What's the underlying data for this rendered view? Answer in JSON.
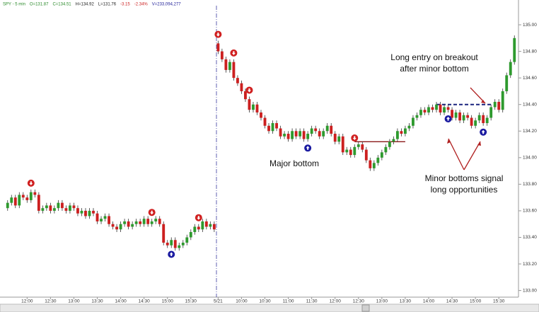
{
  "chart_data": {
    "type": "candlestick",
    "header": [
      {
        "text": "SPY - 5 min",
        "color": "#2a8a2a"
      },
      {
        "text": "O=131.87",
        "color": "#2a8a2a"
      },
      {
        "text": "C=134.51",
        "color": "#2a8a2a"
      },
      {
        "text": "H=134.92",
        "color": "#222222"
      },
      {
        "text": "L=131.76",
        "color": "#222222"
      },
      {
        "text": "-3.15",
        "color": "#cc2222"
      },
      {
        "text": "-2.34%",
        "color": "#cc2222"
      },
      {
        "text": "V=233,094,277",
        "color": "#222299"
      }
    ],
    "up_color": "#2e9a2e",
    "down_color": "#cc2020",
    "wick_color": "#333333",
    "categories": [
      null,
      null,
      null,
      null,
      null,
      "12:00",
      null,
      null,
      null,
      null,
      null,
      "12:30",
      null,
      null,
      null,
      null,
      null,
      "13:00",
      null,
      null,
      null,
      null,
      null,
      "13:30",
      null,
      null,
      null,
      null,
      null,
      "14:00",
      null,
      null,
      null,
      null,
      null,
      "14:30",
      null,
      null,
      null,
      null,
      null,
      "15:00",
      null,
      null,
      null,
      null,
      null,
      "15:30",
      null,
      null,
      null,
      null,
      null,
      null,
      "5/21",
      null,
      null,
      null,
      null,
      null,
      "10:00",
      null,
      null,
      null,
      null,
      null,
      "10:30",
      null,
      null,
      null,
      null,
      null,
      "11:00",
      null,
      null,
      null,
      null,
      null,
      "11:30",
      null,
      null,
      null,
      null,
      null,
      "12:00",
      null,
      null,
      null,
      null,
      null,
      "12:30",
      null,
      null,
      null,
      null,
      null,
      "13:00",
      null,
      null,
      null,
      null,
      null,
      "13:30",
      null,
      null,
      null,
      null,
      null,
      "14:00",
      null,
      null,
      null,
      null,
      null,
      "14:30",
      null,
      null,
      null,
      null,
      null,
      "15:00",
      null,
      null,
      null,
      null,
      null,
      "15:30",
      null,
      null,
      null,
      null
    ],
    "open": [
      133.62,
      133.66,
      133.7,
      133.64,
      133.72,
      133.7,
      133.68,
      133.74,
      133.72,
      133.6,
      133.62,
      133.64,
      133.6,
      133.62,
      133.66,
      133.62,
      133.6,
      133.64,
      133.62,
      133.58,
      133.6,
      133.56,
      133.6,
      133.58,
      133.52,
      133.54,
      133.56,
      133.5,
      133.48,
      133.46,
      133.5,
      133.52,
      133.48,
      133.5,
      133.52,
      133.5,
      133.54,
      133.5,
      133.52,
      133.54,
      133.5,
      133.36,
      133.34,
      133.38,
      133.32,
      133.34,
      133.36,
      133.4,
      133.44,
      133.48,
      133.46,
      133.52,
      133.48,
      133.5,
      134.86,
      134.8,
      134.74,
      134.66,
      134.72,
      134.6,
      134.56,
      134.5,
      134.44,
      134.36,
      134.4,
      134.34,
      134.3,
      134.24,
      134.2,
      134.26,
      134.22,
      134.16,
      134.18,
      134.14,
      134.2,
      134.16,
      134.2,
      134.14,
      134.18,
      134.22,
      134.2,
      134.16,
      134.2,
      134.24,
      134.18,
      134.12,
      134.16,
      134.04,
      134.06,
      134.02,
      134.08,
      134.1,
      134.06,
      133.98,
      133.92,
      133.96,
      134.0,
      134.04,
      134.08,
      134.12,
      134.14,
      134.2,
      134.18,
      134.22,
      134.24,
      134.3,
      134.32,
      134.36,
      134.34,
      134.38,
      134.36,
      134.4,
      134.34,
      134.38,
      134.36,
      134.3,
      134.34,
      134.28,
      134.32,
      134.3,
      134.24,
      134.28,
      134.32,
      134.26,
      134.3,
      134.38,
      134.42,
      134.36,
      134.5,
      134.62,
      134.72
    ],
    "high": [
      133.68,
      133.72,
      133.72,
      133.74,
      133.74,
      133.72,
      133.76,
      133.76,
      133.74,
      133.64,
      133.66,
      133.66,
      133.64,
      133.68,
      133.68,
      133.64,
      133.66,
      133.66,
      133.64,
      133.62,
      133.62,
      133.62,
      133.62,
      133.6,
      133.56,
      133.58,
      133.58,
      133.52,
      133.5,
      133.52,
      133.54,
      133.54,
      133.52,
      133.54,
      133.54,
      133.56,
      133.56,
      133.54,
      133.56,
      133.56,
      133.52,
      133.38,
      133.4,
      133.4,
      133.36,
      133.38,
      133.42,
      133.46,
      133.5,
      133.5,
      133.54,
      133.54,
      133.52,
      133.52,
      134.88,
      134.82,
      134.76,
      134.74,
      134.74,
      134.62,
      134.58,
      134.52,
      134.46,
      134.42,
      134.42,
      134.36,
      134.32,
      134.26,
      134.28,
      134.28,
      134.24,
      134.2,
      134.2,
      134.22,
      134.22,
      134.22,
      134.22,
      134.2,
      134.24,
      134.24,
      134.22,
      134.22,
      134.26,
      134.26,
      134.2,
      134.18,
      134.18,
      134.08,
      134.08,
      134.1,
      134.12,
      134.12,
      134.08,
      134.0,
      133.98,
      134.02,
      134.06,
      134.1,
      134.14,
      134.16,
      134.22,
      134.22,
      134.24,
      134.26,
      134.32,
      134.34,
      134.38,
      134.38,
      134.4,
      134.4,
      134.42,
      134.42,
      134.4,
      134.4,
      134.38,
      134.36,
      134.36,
      134.34,
      134.34,
      134.32,
      134.3,
      134.34,
      134.34,
      134.32,
      134.4,
      134.44,
      134.44,
      134.52,
      134.64,
      134.74,
      134.92
    ],
    "low": [
      133.6,
      133.64,
      133.62,
      133.62,
      133.68,
      133.66,
      133.66,
      133.7,
      133.58,
      133.58,
      133.6,
      133.58,
      133.58,
      133.6,
      133.6,
      133.58,
      133.58,
      133.6,
      133.56,
      133.56,
      133.54,
      133.54,
      133.56,
      133.5,
      133.5,
      133.52,
      133.48,
      133.46,
      133.44,
      133.44,
      133.48,
      133.46,
      133.46,
      133.48,
      133.48,
      133.48,
      133.48,
      133.48,
      133.5,
      133.48,
      133.34,
      133.32,
      133.32,
      133.3,
      133.3,
      133.32,
      133.34,
      133.38,
      133.42,
      133.44,
      133.44,
      133.46,
      133.46,
      133.44,
      134.78,
      134.72,
      134.64,
      134.64,
      134.58,
      134.54,
      134.48,
      134.42,
      134.34,
      134.34,
      134.32,
      134.28,
      134.22,
      134.18,
      134.18,
      134.2,
      134.14,
      134.14,
      134.12,
      134.12,
      134.14,
      134.14,
      134.12,
      134.12,
      134.16,
      134.18,
      134.14,
      134.14,
      134.18,
      134.16,
      134.1,
      134.1,
      134.02,
      134.02,
      134.0,
      134.0,
      134.06,
      134.04,
      133.96,
      133.9,
      133.9,
      133.94,
      133.98,
      134.02,
      134.06,
      134.1,
      134.12,
      134.16,
      134.16,
      134.2,
      134.22,
      134.28,
      134.3,
      134.32,
      134.32,
      134.34,
      134.34,
      134.32,
      134.32,
      134.34,
      134.28,
      134.28,
      134.26,
      134.26,
      134.28,
      134.22,
      134.22,
      134.26,
      134.24,
      134.24,
      134.28,
      134.36,
      134.34,
      134.34,
      134.48,
      134.6,
      134.7
    ],
    "close": [
      133.66,
      133.7,
      133.64,
      133.72,
      133.7,
      133.68,
      133.74,
      133.72,
      133.6,
      133.62,
      133.64,
      133.6,
      133.62,
      133.66,
      133.62,
      133.6,
      133.64,
      133.62,
      133.58,
      133.6,
      133.56,
      133.6,
      133.58,
      133.52,
      133.54,
      133.56,
      133.5,
      133.48,
      133.46,
      133.5,
      133.52,
      133.48,
      133.5,
      133.52,
      133.5,
      133.54,
      133.5,
      133.52,
      133.54,
      133.5,
      133.36,
      133.34,
      133.38,
      133.32,
      133.34,
      133.36,
      133.4,
      133.44,
      133.48,
      133.46,
      133.52,
      133.48,
      133.5,
      133.46,
      134.8,
      134.74,
      134.66,
      134.72,
      134.6,
      134.56,
      134.5,
      134.44,
      134.36,
      134.4,
      134.34,
      134.3,
      134.24,
      134.2,
      134.26,
      134.22,
      134.16,
      134.18,
      134.14,
      134.2,
      134.16,
      134.2,
      134.14,
      134.18,
      134.22,
      134.2,
      134.16,
      134.2,
      134.24,
      134.18,
      134.12,
      134.16,
      134.04,
      134.06,
      134.02,
      134.08,
      134.1,
      134.06,
      133.98,
      133.92,
      133.96,
      134.0,
      134.04,
      134.08,
      134.12,
      134.14,
      134.2,
      134.18,
      134.22,
      134.24,
      134.3,
      134.32,
      134.36,
      134.34,
      134.38,
      134.36,
      134.4,
      134.34,
      134.38,
      134.36,
      134.3,
      134.34,
      134.28,
      134.32,
      134.3,
      134.24,
      134.28,
      134.32,
      134.26,
      134.3,
      134.38,
      134.42,
      134.36,
      134.5,
      134.62,
      134.72,
      134.9
    ],
    "down_signals": [
      6,
      37,
      49,
      54,
      58,
      62,
      89
    ],
    "up_signals": [
      42,
      77,
      113,
      122
    ],
    "levels": [
      {
        "value": 134.12,
        "start": 89,
        "end": 102,
        "color": "#8b1a1a",
        "dashed": false
      },
      {
        "value": 134.4,
        "start": 110,
        "end": 124,
        "color": "#1a237e",
        "dashed": true
      }
    ],
    "annotations": [
      {
        "lines": [
          "Long entry on breakout",
          "after minor bottom"
        ]
      },
      {
        "lines": [
          "Major bottom"
        ]
      },
      {
        "lines": [
          "Minor bottoms signal",
          "long opportunities"
        ]
      }
    ],
    "ylim": [
      132.95,
      135.16
    ],
    "yticks": [
      {
        "value": 133,
        "label": "133.00"
      },
      {
        "value": 133.2,
        "label": "133.20"
      },
      {
        "value": 133.4,
        "label": "133.40"
      },
      {
        "value": 133.6,
        "label": "133.60"
      },
      {
        "value": 133.8,
        "label": "133.80"
      },
      {
        "value": 134,
        "label": "134.00"
      },
      {
        "value": 134.2,
        "label": "134.20"
      },
      {
        "value": 134.4,
        "label": "134.40"
      },
      {
        "value": 134.6,
        "label": "134.60"
      },
      {
        "value": 134.8,
        "label": "134.80"
      },
      {
        "value": 135,
        "label": "135.00"
      }
    ]
  }
}
